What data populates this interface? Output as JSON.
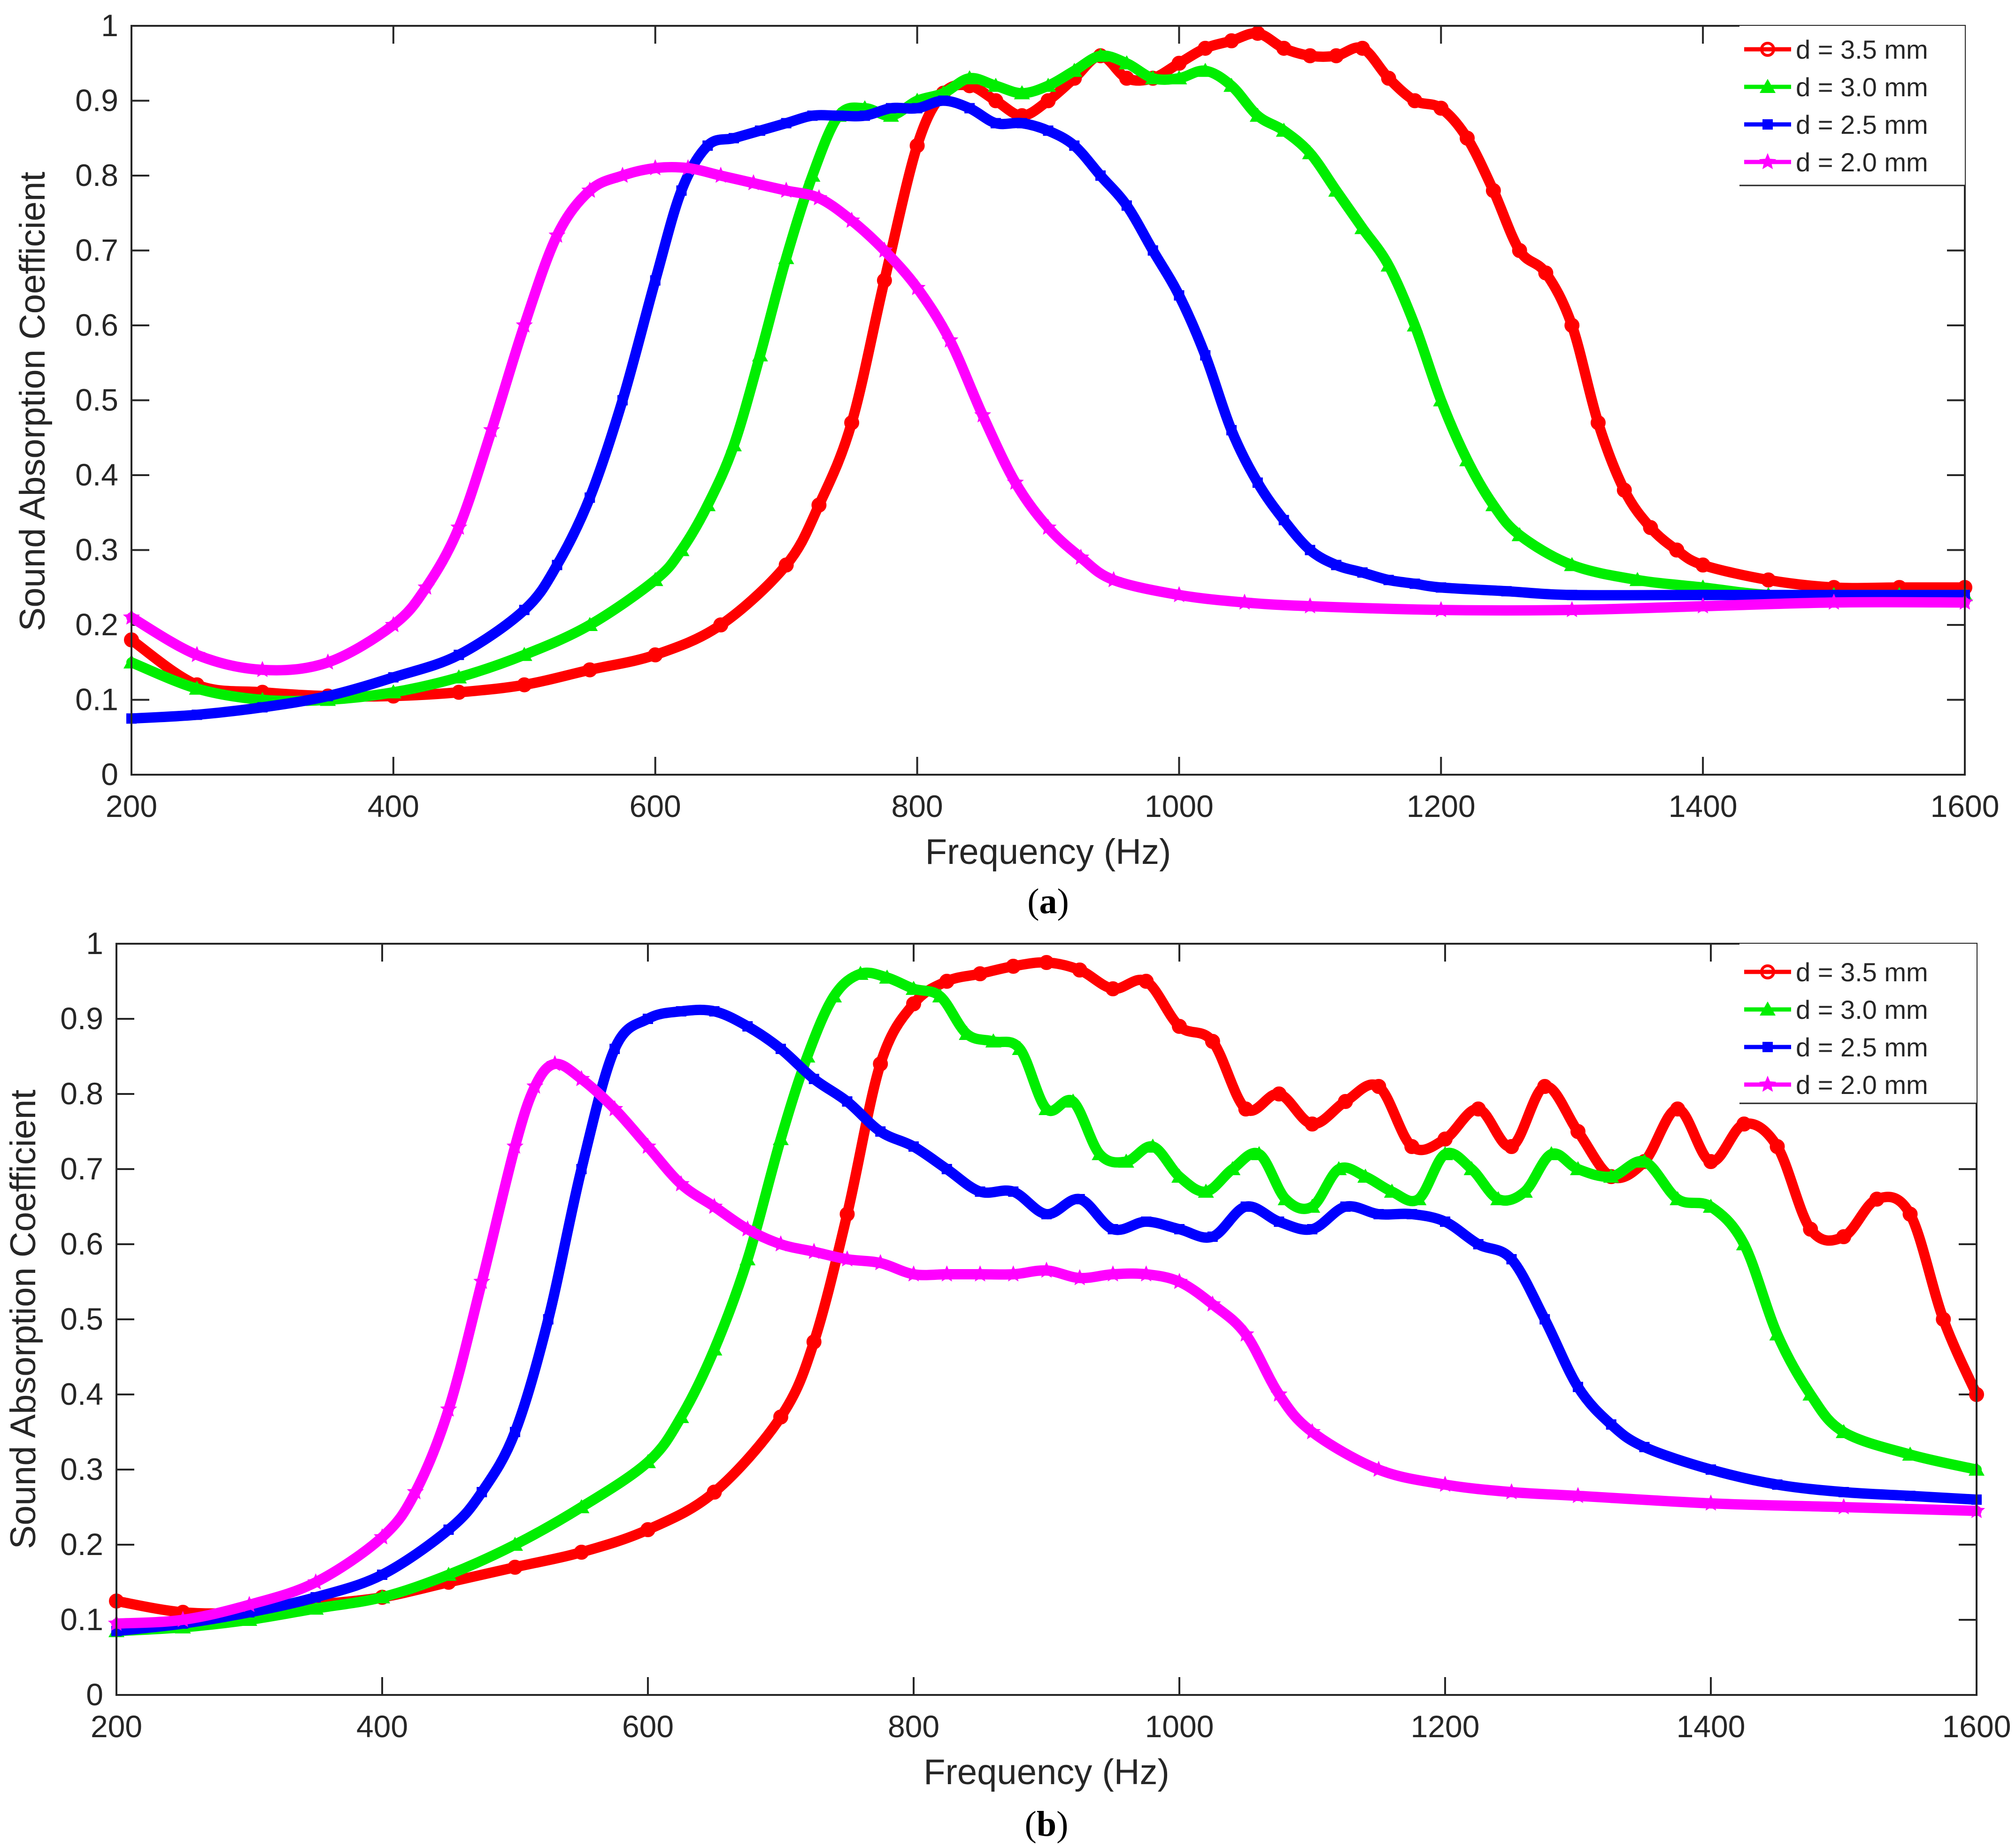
{
  "chart_data": [
    {
      "type": "line",
      "panel_label": "a",
      "xlabel": "Frequency (Hz)",
      "ylabel": "Sound Absorption Coefficient",
      "xlim": [
        200,
        1600
      ],
      "ylim": [
        0,
        1
      ],
      "xticks": [
        200,
        400,
        600,
        800,
        1000,
        1200,
        1400,
        1600
      ],
      "yticks": [
        0,
        0.1,
        0.2,
        0.3,
        0.4,
        0.5,
        0.6,
        0.7,
        0.8,
        0.9,
        1
      ],
      "ytick_labels": [
        "0",
        "0.1",
        "0.2",
        "0.3",
        "0.4",
        "0.5",
        "0.6",
        "0.7",
        "0.8",
        "0.9",
        "1"
      ],
      "grid": false,
      "legend_position": "top-right",
      "series": [
        {
          "name": "d = 3.5 mm",
          "color": "#ff0000",
          "marker": "circle",
          "x": [
            200,
            250,
            300,
            350,
            400,
            450,
            500,
            550,
            600,
            650,
            700,
            725,
            750,
            775,
            800,
            820,
            840,
            860,
            880,
            900,
            920,
            940,
            960,
            980,
            1000,
            1020,
            1040,
            1060,
            1080,
            1100,
            1120,
            1140,
            1160,
            1180,
            1200,
            1220,
            1240,
            1260,
            1280,
            1300,
            1320,
            1340,
            1360,
            1380,
            1400,
            1450,
            1500,
            1550,
            1600
          ],
          "y": [
            0.18,
            0.12,
            0.11,
            0.105,
            0.105,
            0.11,
            0.12,
            0.14,
            0.16,
            0.2,
            0.28,
            0.36,
            0.47,
            0.66,
            0.84,
            0.91,
            0.92,
            0.9,
            0.88,
            0.9,
            0.93,
            0.96,
            0.93,
            0.93,
            0.95,
            0.97,
            0.98,
            0.99,
            0.97,
            0.96,
            0.96,
            0.97,
            0.93,
            0.9,
            0.89,
            0.85,
            0.78,
            0.7,
            0.67,
            0.6,
            0.47,
            0.38,
            0.33,
            0.3,
            0.28,
            0.26,
            0.25,
            0.25,
            0.25
          ]
        },
        {
          "name": "d = 3.0 mm",
          "color": "#00ee00",
          "marker": "triangle",
          "x": [
            200,
            250,
            300,
            350,
            400,
            450,
            500,
            550,
            600,
            620,
            640,
            660,
            680,
            700,
            720,
            740,
            760,
            780,
            800,
            820,
            840,
            860,
            880,
            900,
            920,
            940,
            960,
            980,
            1000,
            1020,
            1040,
            1060,
            1080,
            1100,
            1120,
            1140,
            1160,
            1180,
            1200,
            1220,
            1240,
            1260,
            1300,
            1350,
            1400,
            1450,
            1500,
            1550,
            1600
          ],
          "y": [
            0.15,
            0.115,
            0.1,
            0.1,
            0.11,
            0.13,
            0.16,
            0.2,
            0.26,
            0.3,
            0.36,
            0.44,
            0.56,
            0.69,
            0.8,
            0.88,
            0.89,
            0.88,
            0.9,
            0.91,
            0.93,
            0.92,
            0.91,
            0.92,
            0.94,
            0.96,
            0.95,
            0.93,
            0.93,
            0.94,
            0.92,
            0.88,
            0.86,
            0.83,
            0.78,
            0.73,
            0.68,
            0.6,
            0.5,
            0.42,
            0.36,
            0.32,
            0.28,
            0.26,
            0.25,
            0.24,
            0.24,
            0.24,
            0.24
          ]
        },
        {
          "name": "d = 2.5 mm",
          "color": "#0000ff",
          "marker": "square",
          "x": [
            200,
            250,
            300,
            350,
            400,
            450,
            500,
            525,
            550,
            575,
            600,
            620,
            640,
            660,
            680,
            700,
            720,
            740,
            760,
            780,
            800,
            820,
            840,
            860,
            880,
            900,
            920,
            940,
            960,
            980,
            1000,
            1020,
            1040,
            1060,
            1080,
            1100,
            1120,
            1140,
            1160,
            1180,
            1200,
            1250,
            1300,
            1400,
            1500,
            1600
          ],
          "y": [
            0.075,
            0.08,
            0.09,
            0.105,
            0.13,
            0.16,
            0.22,
            0.28,
            0.37,
            0.5,
            0.66,
            0.78,
            0.84,
            0.85,
            0.86,
            0.87,
            0.88,
            0.88,
            0.88,
            0.89,
            0.89,
            0.9,
            0.89,
            0.87,
            0.87,
            0.86,
            0.84,
            0.8,
            0.76,
            0.7,
            0.64,
            0.56,
            0.46,
            0.39,
            0.34,
            0.3,
            0.28,
            0.27,
            0.26,
            0.255,
            0.25,
            0.245,
            0.24,
            0.24,
            0.24,
            0.24
          ]
        },
        {
          "name": "d = 2.0 mm",
          "color": "#ff00ff",
          "marker": "star",
          "x": [
            200,
            250,
            300,
            350,
            400,
            425,
            450,
            475,
            500,
            525,
            550,
            575,
            600,
            625,
            650,
            675,
            700,
            725,
            750,
            775,
            800,
            825,
            850,
            875,
            900,
            925,
            950,
            1000,
            1050,
            1100,
            1200,
            1300,
            1400,
            1500,
            1600
          ],
          "y": [
            0.21,
            0.16,
            0.14,
            0.15,
            0.2,
            0.25,
            0.33,
            0.46,
            0.6,
            0.72,
            0.78,
            0.8,
            0.81,
            0.81,
            0.8,
            0.79,
            0.78,
            0.77,
            0.74,
            0.7,
            0.65,
            0.58,
            0.48,
            0.39,
            0.33,
            0.29,
            0.26,
            0.24,
            0.23,
            0.225,
            0.22,
            0.22,
            0.225,
            0.23,
            0.23
          ]
        }
      ]
    },
    {
      "type": "line",
      "panel_label": "b",
      "xlabel": "Frequency (Hz)",
      "ylabel": "Sound Absorption Coefficient",
      "xlim": [
        200,
        1600
      ],
      "ylim": [
        0,
        1
      ],
      "xticks": [
        200,
        400,
        600,
        800,
        1000,
        1200,
        1400,
        1600
      ],
      "yticks": [
        0,
        0.1,
        0.2,
        0.3,
        0.4,
        0.5,
        0.6,
        0.7,
        0.8,
        0.9,
        1
      ],
      "ytick_labels": [
        "0",
        "0.1",
        "0.2",
        "0.3",
        "0.4",
        "0.5",
        "0.6",
        "0.7",
        "0.8",
        "0.9",
        "1"
      ],
      "grid": false,
      "legend_position": "top-right",
      "series": [
        {
          "name": "d = 3.5 mm",
          "color": "#ff0000",
          "marker": "circle",
          "x": [
            200,
            250,
            300,
            350,
            400,
            450,
            500,
            550,
            600,
            650,
            700,
            725,
            750,
            775,
            800,
            825,
            850,
            875,
            900,
            925,
            950,
            975,
            1000,
            1025,
            1050,
            1075,
            1100,
            1125,
            1150,
            1175,
            1200,
            1225,
            1250,
            1275,
            1300,
            1325,
            1350,
            1375,
            1400,
            1425,
            1450,
            1475,
            1500,
            1525,
            1550,
            1575,
            1600
          ],
          "y": [
            0.125,
            0.11,
            0.11,
            0.12,
            0.13,
            0.15,
            0.17,
            0.19,
            0.22,
            0.27,
            0.37,
            0.47,
            0.64,
            0.84,
            0.92,
            0.95,
            0.96,
            0.97,
            0.975,
            0.965,
            0.94,
            0.95,
            0.89,
            0.87,
            0.78,
            0.8,
            0.76,
            0.79,
            0.81,
            0.73,
            0.74,
            0.78,
            0.73,
            0.81,
            0.75,
            0.69,
            0.71,
            0.78,
            0.71,
            0.76,
            0.73,
            0.62,
            0.61,
            0.66,
            0.64,
            0.5,
            0.4
          ]
        },
        {
          "name": "d = 3.0 mm",
          "color": "#00ee00",
          "marker": "triangle",
          "x": [
            200,
            250,
            300,
            350,
            400,
            450,
            500,
            550,
            600,
            625,
            650,
            675,
            700,
            720,
            740,
            760,
            780,
            800,
            820,
            840,
            860,
            880,
            900,
            920,
            940,
            960,
            980,
            1000,
            1020,
            1040,
            1060,
            1080,
            1100,
            1120,
            1140,
            1160,
            1180,
            1200,
            1220,
            1240,
            1260,
            1280,
            1300,
            1325,
            1350,
            1375,
            1400,
            1425,
            1450,
            1475,
            1500,
            1550,
            1600
          ],
          "y": [
            0.085,
            0.09,
            0.1,
            0.115,
            0.13,
            0.16,
            0.2,
            0.25,
            0.31,
            0.37,
            0.46,
            0.58,
            0.74,
            0.85,
            0.93,
            0.96,
            0.955,
            0.94,
            0.93,
            0.88,
            0.87,
            0.86,
            0.78,
            0.79,
            0.72,
            0.71,
            0.73,
            0.69,
            0.67,
            0.7,
            0.72,
            0.66,
            0.65,
            0.7,
            0.69,
            0.67,
            0.66,
            0.72,
            0.7,
            0.66,
            0.67,
            0.72,
            0.7,
            0.69,
            0.71,
            0.66,
            0.65,
            0.6,
            0.48,
            0.4,
            0.35,
            0.32,
            0.3
          ]
        },
        {
          "name": "d = 2.5 mm",
          "color": "#0000ff",
          "marker": "square",
          "x": [
            200,
            250,
            300,
            350,
            400,
            450,
            475,
            500,
            525,
            550,
            575,
            600,
            625,
            650,
            675,
            700,
            725,
            750,
            775,
            800,
            825,
            850,
            875,
            900,
            925,
            950,
            975,
            1000,
            1025,
            1050,
            1075,
            1100,
            1125,
            1150,
            1175,
            1200,
            1225,
            1250,
            1275,
            1300,
            1325,
            1350,
            1400,
            1450,
            1500,
            1550,
            1600
          ],
          "y": [
            0.085,
            0.095,
            0.11,
            0.13,
            0.16,
            0.22,
            0.27,
            0.35,
            0.5,
            0.7,
            0.86,
            0.9,
            0.91,
            0.91,
            0.89,
            0.86,
            0.82,
            0.79,
            0.75,
            0.73,
            0.7,
            0.67,
            0.67,
            0.64,
            0.66,
            0.62,
            0.63,
            0.62,
            0.61,
            0.65,
            0.63,
            0.62,
            0.65,
            0.64,
            0.64,
            0.63,
            0.6,
            0.58,
            0.5,
            0.41,
            0.36,
            0.33,
            0.3,
            0.28,
            0.27,
            0.265,
            0.26
          ]
        },
        {
          "name": "d = 2.0 mm",
          "color": "#ff00ff",
          "marker": "star",
          "x": [
            200,
            250,
            300,
            350,
            400,
            425,
            450,
            475,
            500,
            515,
            530,
            550,
            575,
            600,
            625,
            650,
            675,
            700,
            725,
            750,
            775,
            800,
            825,
            850,
            875,
            900,
            925,
            950,
            975,
            1000,
            1025,
            1050,
            1075,
            1100,
            1150,
            1200,
            1250,
            1300,
            1400,
            1500,
            1600
          ],
          "y": [
            0.095,
            0.1,
            0.12,
            0.15,
            0.21,
            0.27,
            0.38,
            0.55,
            0.73,
            0.81,
            0.84,
            0.82,
            0.78,
            0.73,
            0.68,
            0.65,
            0.62,
            0.6,
            0.59,
            0.58,
            0.575,
            0.56,
            0.56,
            0.56,
            0.56,
            0.565,
            0.555,
            0.56,
            0.56,
            0.55,
            0.52,
            0.48,
            0.4,
            0.35,
            0.3,
            0.28,
            0.27,
            0.265,
            0.255,
            0.25,
            0.245
          ]
        }
      ]
    }
  ]
}
